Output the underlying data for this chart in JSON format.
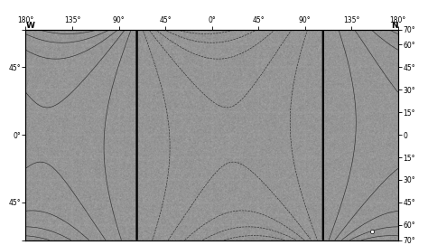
{
  "lon_ticks": [
    -180,
    -135,
    -90,
    -45,
    0,
    45,
    90,
    135,
    180
  ],
  "lon_labels_top": [
    "180°",
    "135°",
    "90°",
    "45°",
    "0°",
    "45°",
    "90°",
    "135°",
    "180°"
  ],
  "left_yticks": [
    70,
    45,
    0,
    -45,
    -70
  ],
  "left_ylabels": [
    "",
    "45°",
    "0°",
    "45°",
    ""
  ],
  "right_yticks": [
    70,
    60,
    45,
    30,
    15,
    0,
    -15,
    -30,
    -45,
    -60,
    -70
  ],
  "right_ylabels": [
    "70°",
    "60°",
    "45°",
    "30°",
    "15°",
    "0",
    "15°",
    "30°",
    "45°",
    "60°",
    "70°"
  ],
  "xlim": [
    -180,
    180
  ],
  "ylim": [
    -70,
    70
  ],
  "bg_color": "#c8c8c8",
  "grid_color": "#aaaaaa",
  "isogone_thin_color": "#222222",
  "isogone_bold_color": "#000000",
  "south_mag_pole_lon": 155.0,
  "south_mag_pole_lat": -64.5,
  "figsize": [
    4.74,
    2.71
  ],
  "dpi": 100
}
